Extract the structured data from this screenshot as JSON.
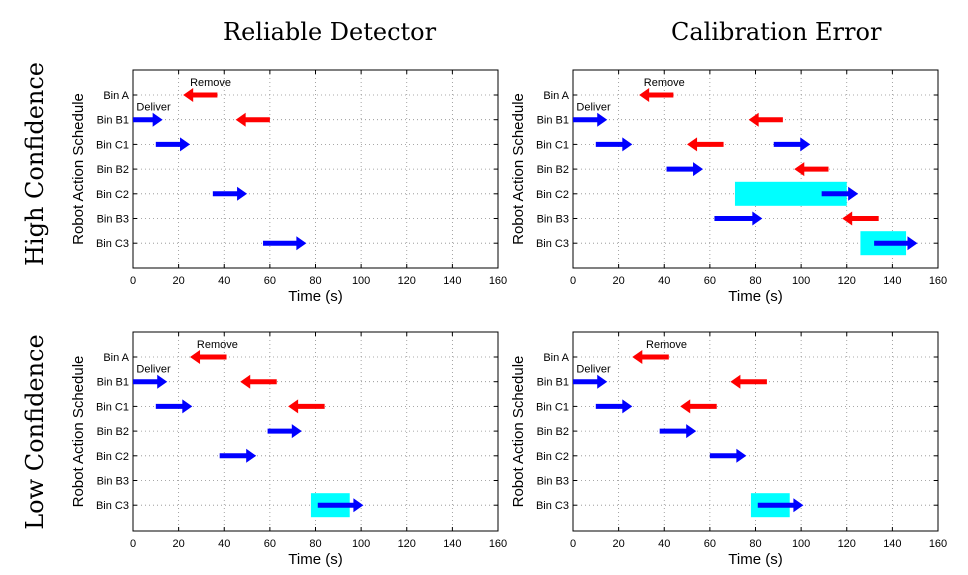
{
  "column_titles": [
    "Reliable Detector",
    "Calibration Error"
  ],
  "row_titles": [
    "High Confidence",
    "Low Confidence"
  ],
  "colors": {
    "deliver": "#0000ff",
    "remove": "#ff0000",
    "highlight": "#00ffff"
  },
  "chart_data": [
    {
      "type": "gantt",
      "title": "Reliable Detector / High Confidence",
      "xlabel": "Time (s)",
      "ylabel": "Robot Action Schedule",
      "xlim": [
        0,
        160
      ],
      "xticks": [
        0,
        20,
        40,
        60,
        80,
        100,
        120,
        140,
        160
      ],
      "categories": [
        "Bin A",
        "Bin B1",
        "Bin C1",
        "Bin B2",
        "Bin C2",
        "Bin B3",
        "Bin C3"
      ],
      "grid": true,
      "annotations": [
        {
          "text": "Remove",
          "x": 34,
          "category": "Bin A"
        },
        {
          "text": "Deliver",
          "x": 9,
          "category": "Bin B1"
        }
      ],
      "actions": [
        {
          "category": "Bin A",
          "kind": "remove",
          "start": 22,
          "end": 37
        },
        {
          "category": "Bin B1",
          "kind": "deliver",
          "start": 0,
          "end": 13
        },
        {
          "category": "Bin B1",
          "kind": "remove",
          "start": 45,
          "end": 60
        },
        {
          "category": "Bin C1",
          "kind": "deliver",
          "start": 10,
          "end": 25
        },
        {
          "category": "Bin C2",
          "kind": "deliver",
          "start": 35,
          "end": 50
        },
        {
          "category": "Bin C3",
          "kind": "deliver",
          "start": 57,
          "end": 76
        }
      ],
      "highlights": []
    },
    {
      "type": "gantt",
      "title": "Calibration Error / High Confidence",
      "xlabel": "Time (s)",
      "ylabel": "Robot Action Schedule",
      "xlim": [
        0,
        160
      ],
      "xticks": [
        0,
        20,
        40,
        60,
        80,
        100,
        120,
        140,
        160
      ],
      "categories": [
        "Bin A",
        "Bin B1",
        "Bin C1",
        "Bin B2",
        "Bin C2",
        "Bin B3",
        "Bin C3"
      ],
      "grid": true,
      "annotations": [
        {
          "text": "Remove",
          "x": 40,
          "category": "Bin A"
        },
        {
          "text": "Deliver",
          "x": 9,
          "category": "Bin B1"
        }
      ],
      "actions": [
        {
          "category": "Bin A",
          "kind": "remove",
          "start": 29,
          "end": 44
        },
        {
          "category": "Bin B1",
          "kind": "deliver",
          "start": 0,
          "end": 15
        },
        {
          "category": "Bin B1",
          "kind": "remove",
          "start": 77,
          "end": 92
        },
        {
          "category": "Bin C1",
          "kind": "deliver",
          "start": 10,
          "end": 26
        },
        {
          "category": "Bin C1",
          "kind": "remove",
          "start": 50,
          "end": 66
        },
        {
          "category": "Bin C1",
          "kind": "deliver",
          "start": 88,
          "end": 104
        },
        {
          "category": "Bin B2",
          "kind": "deliver",
          "start": 41,
          "end": 57
        },
        {
          "category": "Bin B2",
          "kind": "remove",
          "start": 97,
          "end": 112
        },
        {
          "category": "Bin C2",
          "kind": "deliver",
          "start": 109,
          "end": 125
        },
        {
          "category": "Bin B3",
          "kind": "deliver",
          "start": 62,
          "end": 83
        },
        {
          "category": "Bin B3",
          "kind": "remove",
          "start": 118,
          "end": 134
        },
        {
          "category": "Bin C3",
          "kind": "deliver",
          "start": 132,
          "end": 151
        }
      ],
      "highlights": [
        {
          "category": "Bin C2",
          "start": 71,
          "end": 120
        },
        {
          "category": "Bin C3",
          "start": 126,
          "end": 146
        }
      ]
    },
    {
      "type": "gantt",
      "title": "Reliable Detector / Low Confidence",
      "xlabel": "Time (s)",
      "ylabel": "Robot Action Schedule",
      "xlim": [
        0,
        160
      ],
      "xticks": [
        0,
        20,
        40,
        60,
        80,
        100,
        120,
        140,
        160
      ],
      "categories": [
        "Bin A",
        "Bin B1",
        "Bin C1",
        "Bin B2",
        "Bin C2",
        "Bin B3",
        "Bin C3"
      ],
      "grid": true,
      "annotations": [
        {
          "text": "Remove",
          "x": 37,
          "category": "Bin A"
        },
        {
          "text": "Deliver",
          "x": 9,
          "category": "Bin B1"
        }
      ],
      "actions": [
        {
          "category": "Bin A",
          "kind": "remove",
          "start": 25,
          "end": 41
        },
        {
          "category": "Bin B1",
          "kind": "deliver",
          "start": 0,
          "end": 15
        },
        {
          "category": "Bin B1",
          "kind": "remove",
          "start": 47,
          "end": 63
        },
        {
          "category": "Bin C1",
          "kind": "deliver",
          "start": 10,
          "end": 26
        },
        {
          "category": "Bin C1",
          "kind": "remove",
          "start": 68,
          "end": 84
        },
        {
          "category": "Bin B2",
          "kind": "deliver",
          "start": 59,
          "end": 74
        },
        {
          "category": "Bin C2",
          "kind": "deliver",
          "start": 38,
          "end": 54
        },
        {
          "category": "Bin C3",
          "kind": "deliver",
          "start": 81,
          "end": 101
        }
      ],
      "highlights": [
        {
          "category": "Bin C3",
          "start": 78,
          "end": 95
        }
      ]
    },
    {
      "type": "gantt",
      "title": "Calibration Error / Low Confidence",
      "xlabel": "Time (s)",
      "ylabel": "Robot Action Schedule",
      "xlim": [
        0,
        160
      ],
      "xticks": [
        0,
        20,
        40,
        60,
        80,
        100,
        120,
        140,
        160
      ],
      "categories": [
        "Bin A",
        "Bin B1",
        "Bin C1",
        "Bin B2",
        "Bin C2",
        "Bin B3",
        "Bin C3"
      ],
      "grid": true,
      "annotations": [
        {
          "text": "Remove",
          "x": 41,
          "category": "Bin A"
        },
        {
          "text": "Deliver",
          "x": 9,
          "category": "Bin B1"
        }
      ],
      "actions": [
        {
          "category": "Bin A",
          "kind": "remove",
          "start": 26,
          "end": 42
        },
        {
          "category": "Bin B1",
          "kind": "deliver",
          "start": 0,
          "end": 15
        },
        {
          "category": "Bin B1",
          "kind": "remove",
          "start": 69,
          "end": 85
        },
        {
          "category": "Bin C1",
          "kind": "deliver",
          "start": 10,
          "end": 26
        },
        {
          "category": "Bin C1",
          "kind": "remove",
          "start": 47,
          "end": 63
        },
        {
          "category": "Bin B2",
          "kind": "deliver",
          "start": 38,
          "end": 54
        },
        {
          "category": "Bin C2",
          "kind": "deliver",
          "start": 60,
          "end": 76
        },
        {
          "category": "Bin C3",
          "kind": "deliver",
          "start": 81,
          "end": 101
        }
      ],
      "highlights": [
        {
          "category": "Bin C3",
          "start": 78,
          "end": 95
        }
      ]
    }
  ]
}
